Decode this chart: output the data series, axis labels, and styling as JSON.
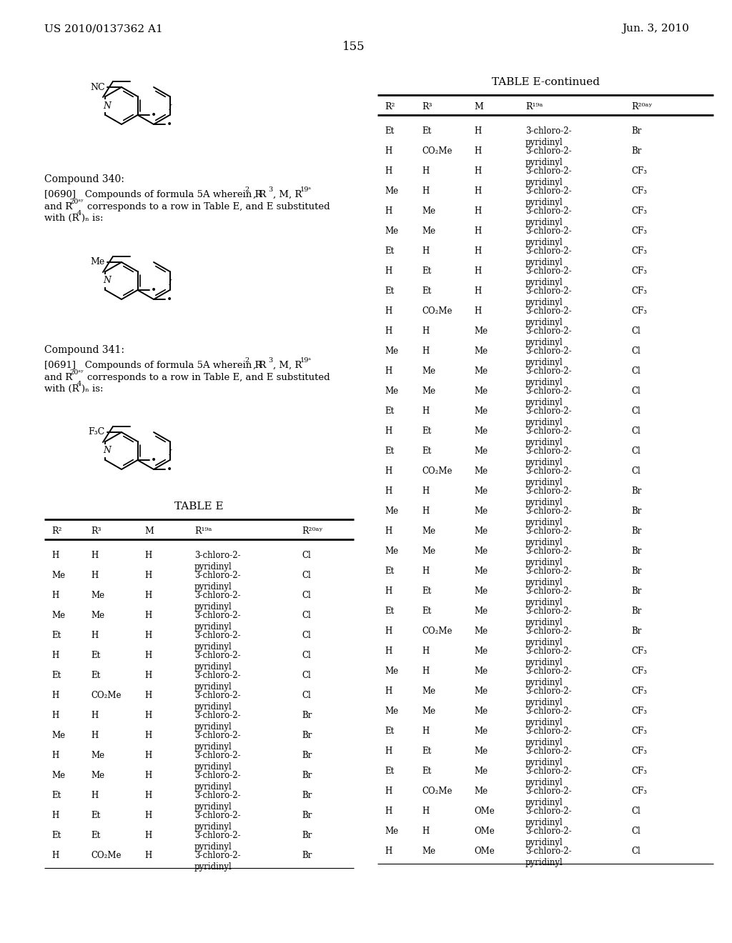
{
  "page_header_left": "US 2010/0137362 A1",
  "page_header_right": "Jun. 3, 2010",
  "page_number": "155",
  "background_color": "#ffffff",
  "col_headers": [
    "R²",
    "R³",
    "M",
    "R¹⁹ᵃ",
    "R²⁰ᵃʸ"
  ],
  "table_e_rows": [
    [
      "H",
      "H",
      "H",
      "3-chloro-2-\npyridinyl",
      "Cl"
    ],
    [
      "Me",
      "H",
      "H",
      "3-chloro-2-\npyridinyl",
      "Cl"
    ],
    [
      "H",
      "Me",
      "H",
      "3-chloro-2-\npyridinyl",
      "Cl"
    ],
    [
      "Me",
      "Me",
      "H",
      "3-chloro-2-\npyridinyl",
      "Cl"
    ],
    [
      "Et",
      "H",
      "H",
      "3-chloro-2-\npyridinyl",
      "Cl"
    ],
    [
      "H",
      "Et",
      "H",
      "3-chloro-2-\npyridinyl",
      "Cl"
    ],
    [
      "Et",
      "Et",
      "H",
      "3-chloro-2-\npyridinyl",
      "Cl"
    ],
    [
      "H",
      "CO₂Me",
      "H",
      "3-chloro-2-\npyridinyl",
      "Cl"
    ],
    [
      "H",
      "H",
      "H",
      "3-chloro-2-\npyridinyl",
      "Br"
    ],
    [
      "Me",
      "H",
      "H",
      "3-chloro-2-\npyridinyl",
      "Br"
    ],
    [
      "H",
      "Me",
      "H",
      "3-chloro-2-\npyridinyl",
      "Br"
    ],
    [
      "Me",
      "Me",
      "H",
      "3-chloro-2-\npyridinyl",
      "Br"
    ],
    [
      "Et",
      "H",
      "H",
      "3-chloro-2-\npyridinyl",
      "Br"
    ],
    [
      "H",
      "Et",
      "H",
      "3-chloro-2-\npyridinyl",
      "Br"
    ],
    [
      "Et",
      "Et",
      "H",
      "3-chloro-2-\npyridinyl",
      "Br"
    ],
    [
      "H",
      "CO₂Me",
      "H",
      "3-chloro-2-\npyridinyl",
      "Br"
    ]
  ],
  "table_e_cont_rows": [
    [
      "Et",
      "Et",
      "H",
      "3-chloro-2-\npyridinyl",
      "Br"
    ],
    [
      "H",
      "CO₂Me",
      "H",
      "3-chloro-2-\npyridinyl",
      "Br"
    ],
    [
      "H",
      "H",
      "H",
      "3-chloro-2-\npyridinyl",
      "CF₃"
    ],
    [
      "Me",
      "H",
      "H",
      "3-chloro-2-\npyridinyl",
      "CF₃"
    ],
    [
      "H",
      "Me",
      "H",
      "3-chloro-2-\npyridinyl",
      "CF₃"
    ],
    [
      "Me",
      "Me",
      "H",
      "3-chloro-2-\npyridinyl",
      "CF₃"
    ],
    [
      "Et",
      "H",
      "H",
      "3-chloro-2-\npyridinyl",
      "CF₃"
    ],
    [
      "H",
      "Et",
      "H",
      "3-chloro-2-\npyridinyl",
      "CF₃"
    ],
    [
      "Et",
      "Et",
      "H",
      "3-chloro-2-\npyridinyl",
      "CF₃"
    ],
    [
      "H",
      "CO₂Me",
      "H",
      "3-chloro-2-\npyridinyl",
      "CF₃"
    ],
    [
      "H",
      "H",
      "Me",
      "3-chloro-2-\npyridinyl",
      "Cl"
    ],
    [
      "Me",
      "H",
      "Me",
      "3-chloro-2-\npyridinyl",
      "Cl"
    ],
    [
      "H",
      "Me",
      "Me",
      "3-chloro-2-\npyridinyl",
      "Cl"
    ],
    [
      "Me",
      "Me",
      "Me",
      "3-chloro-2-\npyridinyl",
      "Cl"
    ],
    [
      "Et",
      "H",
      "Me",
      "3-chloro-2-\npyridinyl",
      "Cl"
    ],
    [
      "H",
      "Et",
      "Me",
      "3-chloro-2-\npyridinyl",
      "Cl"
    ],
    [
      "Et",
      "Et",
      "Me",
      "3-chloro-2-\npyridinyl",
      "Cl"
    ],
    [
      "H",
      "CO₂Me",
      "Me",
      "3-chloro-2-\npyridinyl",
      "Cl"
    ],
    [
      "H",
      "H",
      "Me",
      "3-chloro-2-\npyridinyl",
      "Br"
    ],
    [
      "Me",
      "H",
      "Me",
      "3-chloro-2-\npyridinyl",
      "Br"
    ],
    [
      "H",
      "Me",
      "Me",
      "3-chloro-2-\npyridinyl",
      "Br"
    ],
    [
      "Me",
      "Me",
      "Me",
      "3-chloro-2-\npyridinyl",
      "Br"
    ],
    [
      "Et",
      "H",
      "Me",
      "3-chloro-2-\npyridinyl",
      "Br"
    ],
    [
      "H",
      "Et",
      "Me",
      "3-chloro-2-\npyridinyl",
      "Br"
    ],
    [
      "Et",
      "Et",
      "Me",
      "3-chloro-2-\npyridinyl",
      "Br"
    ],
    [
      "H",
      "CO₂Me",
      "Me",
      "3-chloro-2-\npyridinyl",
      "Br"
    ],
    [
      "H",
      "H",
      "Me",
      "3-chloro-2-\npyridinyl",
      "CF₃"
    ],
    [
      "Me",
      "H",
      "Me",
      "3-chloro-2-\npyridinyl",
      "CF₃"
    ],
    [
      "H",
      "Me",
      "Me",
      "3-chloro-2-\npyridinyl",
      "CF₃"
    ],
    [
      "Me",
      "Me",
      "Me",
      "3-chloro-2-\npyridinyl",
      "CF₃"
    ],
    [
      "Et",
      "H",
      "Me",
      "3-chloro-2-\npyridinyl",
      "CF₃"
    ],
    [
      "H",
      "Et",
      "Me",
      "3-chloro-2-\npyridinyl",
      "CF₃"
    ],
    [
      "Et",
      "Et",
      "Me",
      "3-chloro-2-\npyridinyl",
      "CF₃"
    ],
    [
      "H",
      "CO₂Me",
      "Me",
      "3-chloro-2-\npyridinyl",
      "CF₃"
    ],
    [
      "H",
      "H",
      "OMe",
      "3-chloro-2-\npyridinyl",
      "Cl"
    ],
    [
      "Me",
      "H",
      "OMe",
      "3-chloro-2-\npyridinyl",
      "Cl"
    ],
    [
      "H",
      "Me",
      "OMe",
      "3-chloro-2-\npyridinyl",
      "Cl"
    ]
  ]
}
